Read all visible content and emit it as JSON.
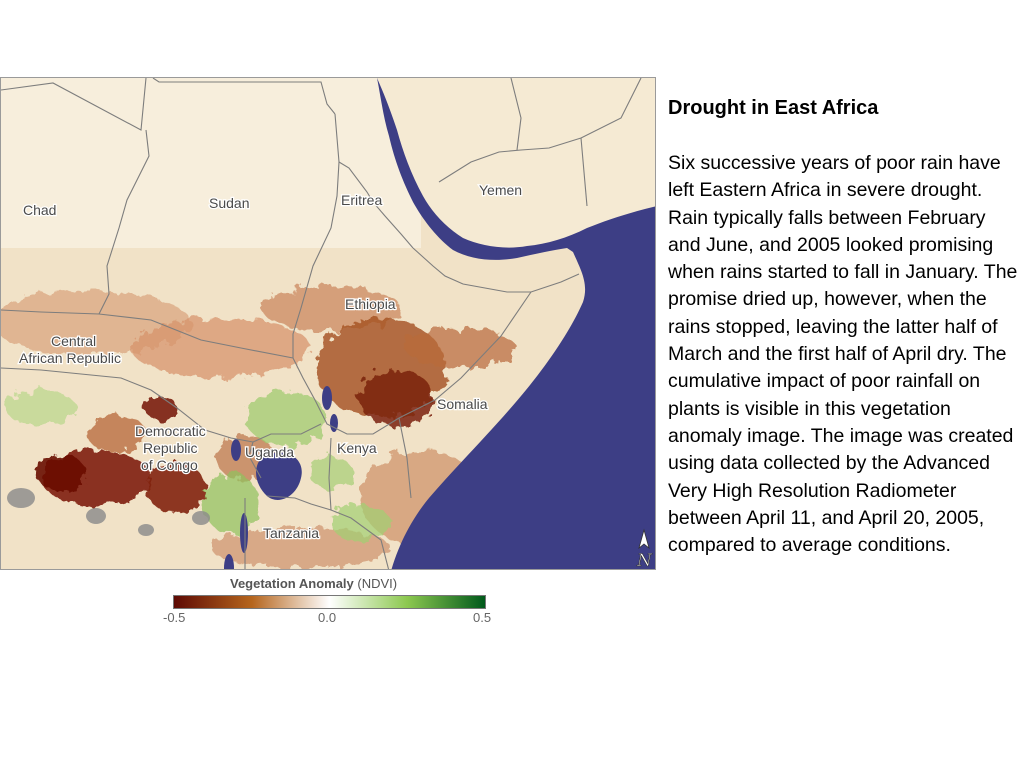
{
  "map": {
    "labels": {
      "chad": "Chad",
      "sudan": "Sudan",
      "eritrea": "Eritrea",
      "yemen": "Yemen",
      "ethiopia": "Ethiopia",
      "car_line1": "Central",
      "car_line2": "African Republic",
      "somalia": "Somalia",
      "drc_line1": "Democratic",
      "drc_line2": "Republic",
      "drc_line3": "of Congo",
      "uganda": "Uganda",
      "kenya": "Kenya",
      "tanzania": "Tanzania"
    },
    "north_arrow_letter": "N",
    "colors": {
      "water": "#3d3e85",
      "land": "#f1e2c7",
      "drought_strong": "#6e0f08",
      "drought_mid": "#a9541f",
      "greener": "#90c060",
      "no_data": "#8a8a8a"
    }
  },
  "legend": {
    "title": "Vegetation Anomaly",
    "subtitle": "(NDVI)",
    "ticks": [
      "-0.5",
      "0.0",
      "0.5"
    ],
    "colors": [
      "#5e0a04",
      "#b5651d",
      "#ffffff",
      "#8cc84f",
      "#00591b"
    ]
  },
  "article": {
    "title": "Drought in East Africa",
    "body": "Six successive years of poor rain have left Eastern Africa in severe drought. Rain typically falls between February and June, and 2005 looked promising when rains started to fall in January. The promise dried up, however, when the rains stopped, leaving the latter half of March and the first half of April dry. The cumulative impact of poor rainfall on plants is visible in this vegetation anomaly image. The image was created using data collected by the Advanced Very High Resolution Radiometer between April 11, and April 20, 2005, compared to average conditions."
  }
}
